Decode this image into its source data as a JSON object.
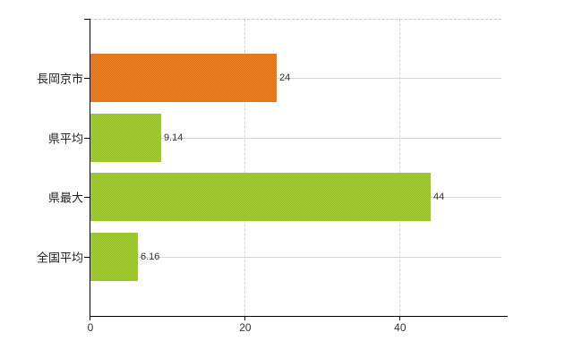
{
  "page": {
    "background": "#ffffff"
  },
  "chart_data": {
    "type": "bar",
    "orientation": "horizontal",
    "title": "",
    "xlabel": "",
    "ylabel": "",
    "categories": [
      "長岡京市",
      "県平均",
      "県最大",
      "全国平均"
    ],
    "values": [
      24,
      9.14,
      44,
      6.16
    ],
    "value_labels": [
      "24",
      "9.14",
      "44",
      "6.16"
    ],
    "bar_colors": [
      {
        "base": "#ef8120",
        "shade": "#d9731a"
      },
      {
        "base": "#a6cd34",
        "shade": "#93c027"
      },
      {
        "base": "#a6cd34",
        "shade": "#93c027"
      },
      {
        "base": "#a6cd34",
        "shade": "#93c027"
      }
    ],
    "x_ticks": [
      0,
      20,
      40
    ],
    "x_tick_labels": [
      "0",
      "20",
      "40"
    ],
    "xlim": [
      0,
      53.2
    ],
    "grid": {
      "vertical_gridlines": true,
      "horizontal_category_lines": true,
      "top_border_dashed": true
    },
    "legend": "none",
    "colors": {
      "axis": "#000000",
      "gridline": "#d6d6d6",
      "category_gridline": "#d4d8d2",
      "top_border": "#c9c9c9",
      "tick_text": "#333333",
      "category_text": "#222222",
      "background": "#ffffff"
    }
  }
}
